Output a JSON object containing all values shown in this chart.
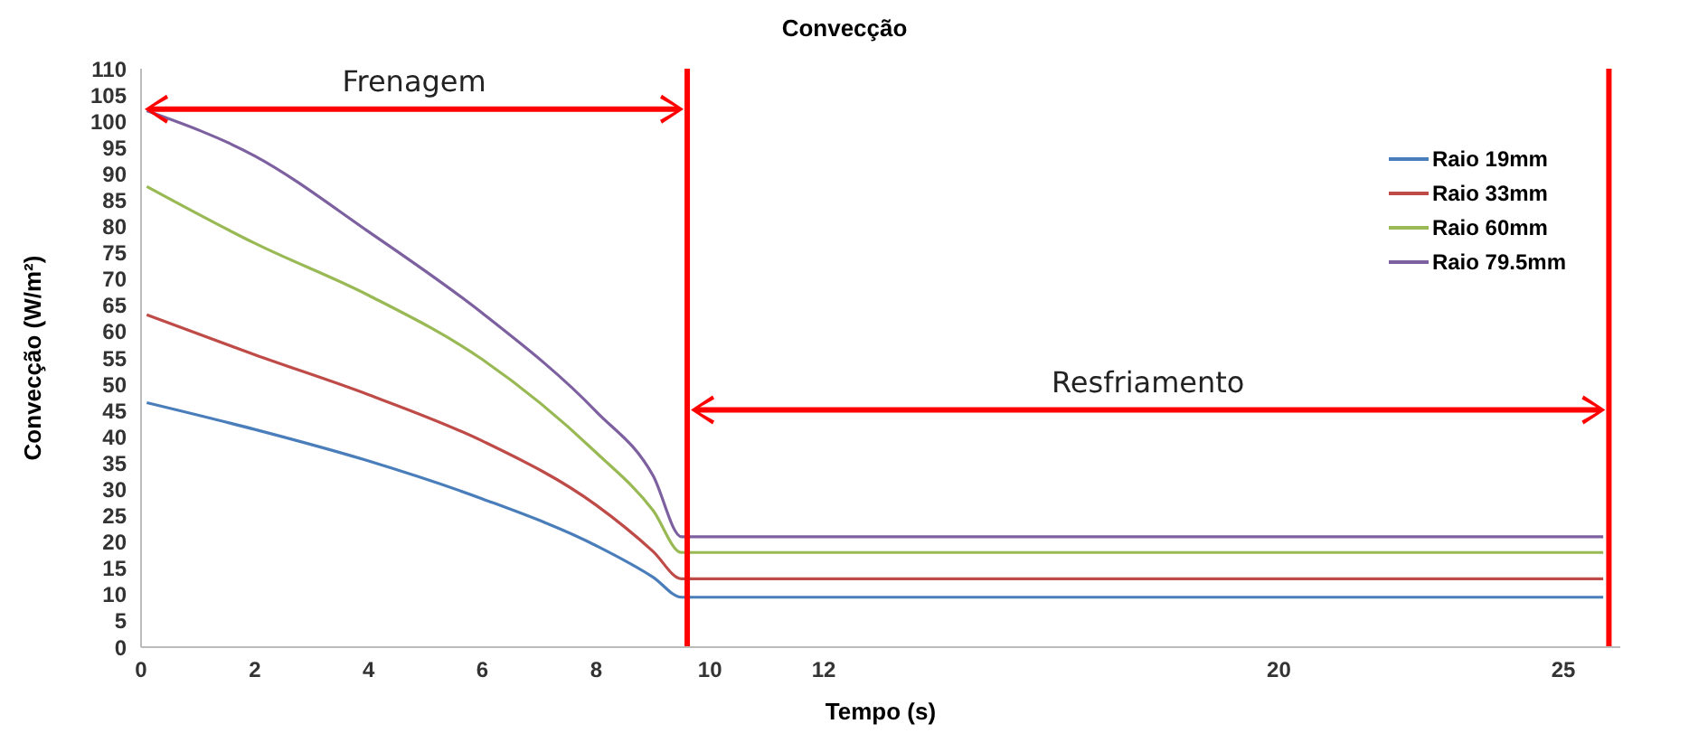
{
  "chart_data": {
    "type": "line",
    "title": "Convecção",
    "xlabel": "Tempo (s)",
    "ylabel": "Convecção (W/m²)",
    "x": [
      0.1,
      2,
      4,
      6,
      8,
      9,
      9.5,
      25.7
    ],
    "series": [
      {
        "name": "Raio 19mm",
        "color": "#4a7ebb",
        "values": [
          46.5,
          41.4,
          35.4,
          28.2,
          19.3,
          13.3,
          9.5,
          9.5
        ]
      },
      {
        "name": "Raio 33mm",
        "color": "#be4b48",
        "values": [
          63.2,
          55.6,
          48,
          39.2,
          27,
          18.2,
          13,
          13
        ]
      },
      {
        "name": "Raio 60mm",
        "color": "#98b954",
        "values": [
          87.6,
          76.8,
          66.9,
          54.7,
          37,
          26,
          18,
          18
        ]
      },
      {
        "name": "Raio 79.5mm",
        "color": "#7d60a0",
        "values": [
          102,
          93.4,
          79,
          63.5,
          44.8,
          32.6,
          21,
          21
        ]
      }
    ],
    "xlim": [
      0,
      26
    ],
    "xticks": [
      0,
      2,
      4,
      6,
      8,
      10,
      12,
      20,
      25
    ],
    "ylim": [
      0,
      110
    ],
    "yticks": [
      0,
      5,
      10,
      15,
      20,
      25,
      30,
      35,
      40,
      45,
      50,
      55,
      60,
      65,
      70,
      75,
      80,
      85,
      90,
      95,
      100,
      105,
      110
    ],
    "ref_lines": [
      {
        "axis": "x",
        "value": 9.6,
        "color": "#ff0000"
      },
      {
        "axis": "x",
        "value": 25.8,
        "color": "#ff0000"
      }
    ],
    "annotations": [
      "Frenagem",
      "Resfriamento"
    ],
    "legend": "top right",
    "grid": false,
    "marker": "none",
    "line_style": "solid"
  }
}
